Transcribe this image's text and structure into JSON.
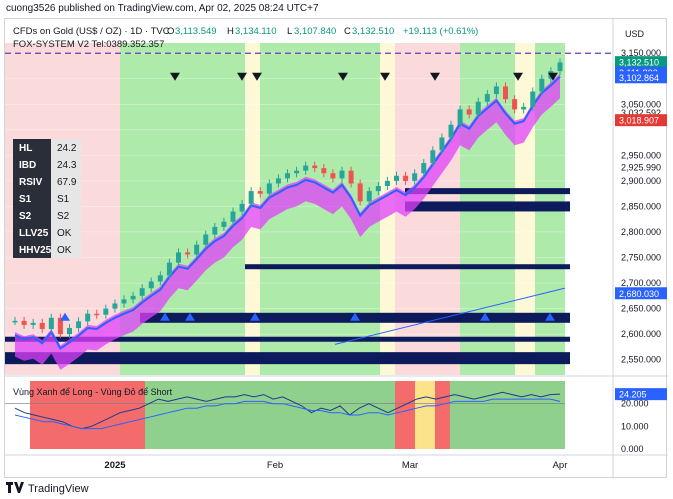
{
  "publisher": "cuong3526 published on TradingView.com, Apr 02, 2025 08:24 UTC+7",
  "footer_brand": "TradingView",
  "header": {
    "symbol": "CFDs on Gold (US$ / OZ) · 1D · TVC",
    "open_label": "O",
    "open": "3,113.549",
    "high_label": "H",
    "high": "3,134.110",
    "low_label": "L",
    "low": "3,107.840",
    "close_label": "C",
    "close": "3,132.510",
    "change": "+19.113 (+0.61%)",
    "indicator": "FOX-SYSTEM V2 Tel:0389.352.357"
  },
  "info_table": [
    {
      "label": "HL",
      "value": "24.2"
    },
    {
      "label": "IBD",
      "value": "24.3"
    },
    {
      "label": "RSIV",
      "value": "67.9"
    },
    {
      "label": "S1",
      "value": "S1"
    },
    {
      "label": "S2",
      "value": "S2"
    },
    {
      "label": "LLV25",
      "value": "OK"
    },
    {
      "label": "HHV25",
      "value": "OK"
    }
  ],
  "sub_pane_title": "Vùng Xanh để Long - Vùng Đỏ để Short",
  "currency": "USD",
  "colors": {
    "up": "#26a69a",
    "down": "#ef5350",
    "green_zone": "#a5e8a0",
    "red_zone": "#f9d6d6",
    "yellow_zone": "#fdf7d2",
    "magenta": "#e040fb",
    "navy": "#0d1a5c",
    "blue_line": "#2962ff",
    "price_badge": "#089981",
    "blue_badge": "#2962ff",
    "red_badge": "#e53935"
  },
  "chart_data": [
    {
      "type": "line",
      "title": "CFDs on Gold (US$ / OZ) · 1D · TVC",
      "ylim": [
        2520,
        3170
      ],
      "y_ticks": [
        "3,150.000",
        "3,100.000",
        "3,050.000",
        "3,032.592",
        "2,950.000",
        "2,925.990",
        "2,900.000",
        "2,850.000",
        "2,800.000",
        "2,750.000",
        "2,700.000",
        "2,650.000",
        "2,600.000",
        "2,550.000"
      ],
      "x_ticks": [
        "2025",
        "Feb",
        "Mar",
        "Apr"
      ],
      "price_badges": [
        {
          "value": "3,132.510",
          "color": "#089981"
        },
        {
          "value": "3,111.893",
          "color": "#2962ff"
        },
        {
          "value": "3,102.864",
          "color": "#2962ff"
        },
        {
          "value": "3,018.907",
          "color": "#e53935"
        },
        {
          "value": "2,680.030",
          "color": "#2962ff"
        }
      ],
      "series": [
        {
          "values": [
            2626,
            2618,
            2622,
            2610,
            2632,
            2600,
            2612,
            2625,
            2640,
            2638,
            2650,
            2660,
            2668,
            2675,
            2690,
            2703,
            2715,
            2740,
            2760,
            2756,
            2775,
            2795,
            2810,
            2820,
            2840,
            2855,
            2880,
            2875,
            2895,
            2905,
            2915,
            2920,
            2930,
            2925,
            2915,
            2905,
            2920,
            2895,
            2860,
            2880,
            2890,
            2900,
            2910,
            2900,
            2915,
            2935,
            2960,
            2985,
            3010,
            3040,
            3030,
            3055,
            3070,
            3085,
            3060,
            3040,
            3045,
            3075,
            3100,
            3115,
            3132
          ]
        }
      ]
    },
    {
      "type": "line",
      "title": "Vùng Xanh để Long - Vùng Đỏ để Short",
      "ylim": [
        0,
        30
      ],
      "y_ticks": [
        "20.000",
        "10.000",
        "0.000"
      ],
      "last_value": "24.205",
      "series": [
        {
          "values": [
            18,
            16,
            15,
            14,
            13,
            12,
            10,
            9,
            10,
            12,
            14,
            16,
            17,
            18,
            20,
            22,
            21,
            22,
            23,
            22,
            21,
            22,
            23,
            23,
            24,
            23,
            24,
            22,
            23,
            21,
            19,
            16,
            18,
            17,
            19,
            15,
            18,
            20,
            18,
            16,
            18,
            20,
            22,
            23,
            22,
            23,
            24,
            23,
            22,
            23,
            24,
            25,
            24,
            23,
            24,
            23,
            24,
            24.2
          ]
        },
        {
          "values": [
            15,
            14,
            13,
            12,
            12,
            11,
            10,
            9,
            9,
            9,
            10,
            11,
            12,
            13,
            14,
            15,
            16,
            17,
            18,
            18,
            19,
            19,
            20,
            20,
            21,
            21,
            21,
            20,
            20,
            19,
            18,
            17,
            17,
            16,
            16,
            15,
            15,
            16,
            16,
            15,
            16,
            17,
            18,
            19,
            19,
            20,
            21,
            21,
            21,
            21,
            22,
            22,
            22,
            22,
            22,
            22,
            22,
            21
          ]
        }
      ]
    }
  ]
}
